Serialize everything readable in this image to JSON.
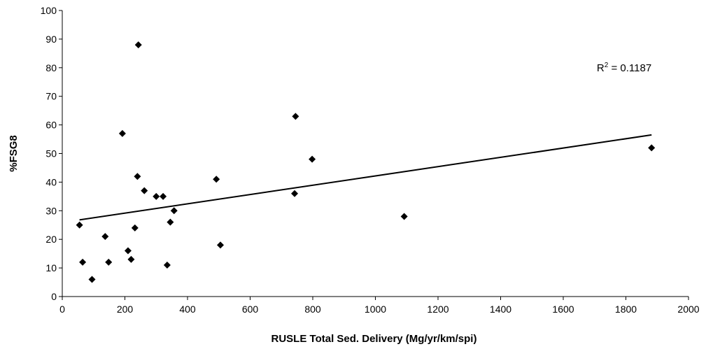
{
  "chart_data": {
    "type": "scatter",
    "xlabel": "RUSLE Total Sed. Delivery (Mg/yr/km/spi)",
    "ylabel": "%FSG8",
    "xlim": [
      0,
      2000
    ],
    "ylim": [
      0,
      100
    ],
    "x_ticks": [
      "0",
      "200",
      "400",
      "600",
      "800",
      "1000",
      "1200",
      "1400",
      "1600",
      "1800",
      "2000"
    ],
    "y_ticks": [
      "0",
      "10",
      "20",
      "30",
      "40",
      "50",
      "60",
      "70",
      "80",
      "90",
      "100"
    ],
    "grid": false,
    "legend": "none",
    "points": [
      {
        "x": 55,
        "y": 25
      },
      {
        "x": 65,
        "y": 12
      },
      {
        "x": 95,
        "y": 6
      },
      {
        "x": 137,
        "y": 21
      },
      {
        "x": 148,
        "y": 12
      },
      {
        "x": 192,
        "y": 57
      },
      {
        "x": 210,
        "y": 16
      },
      {
        "x": 220,
        "y": 13
      },
      {
        "x": 232,
        "y": 24
      },
      {
        "x": 240,
        "y": 42
      },
      {
        "x": 243,
        "y": 88
      },
      {
        "x": 262,
        "y": 37
      },
      {
        "x": 300,
        "y": 35
      },
      {
        "x": 322,
        "y": 35
      },
      {
        "x": 335,
        "y": 11
      },
      {
        "x": 345,
        "y": 26
      },
      {
        "x": 357,
        "y": 30
      },
      {
        "x": 492,
        "y": 41
      },
      {
        "x": 505,
        "y": 18
      },
      {
        "x": 742,
        "y": 36
      },
      {
        "x": 745,
        "y": 63
      },
      {
        "x": 798,
        "y": 48
      },
      {
        "x": 1092,
        "y": 28
      },
      {
        "x": 1882,
        "y": 52
      }
    ],
    "trendline": {
      "x": [
        55,
        1882
      ],
      "y": [
        26.8,
        56.5
      ]
    },
    "annotation": {
      "prefix": "R",
      "sup": "2",
      "suffix": " = 0.1187",
      "x": 1882,
      "y": 80
    }
  }
}
